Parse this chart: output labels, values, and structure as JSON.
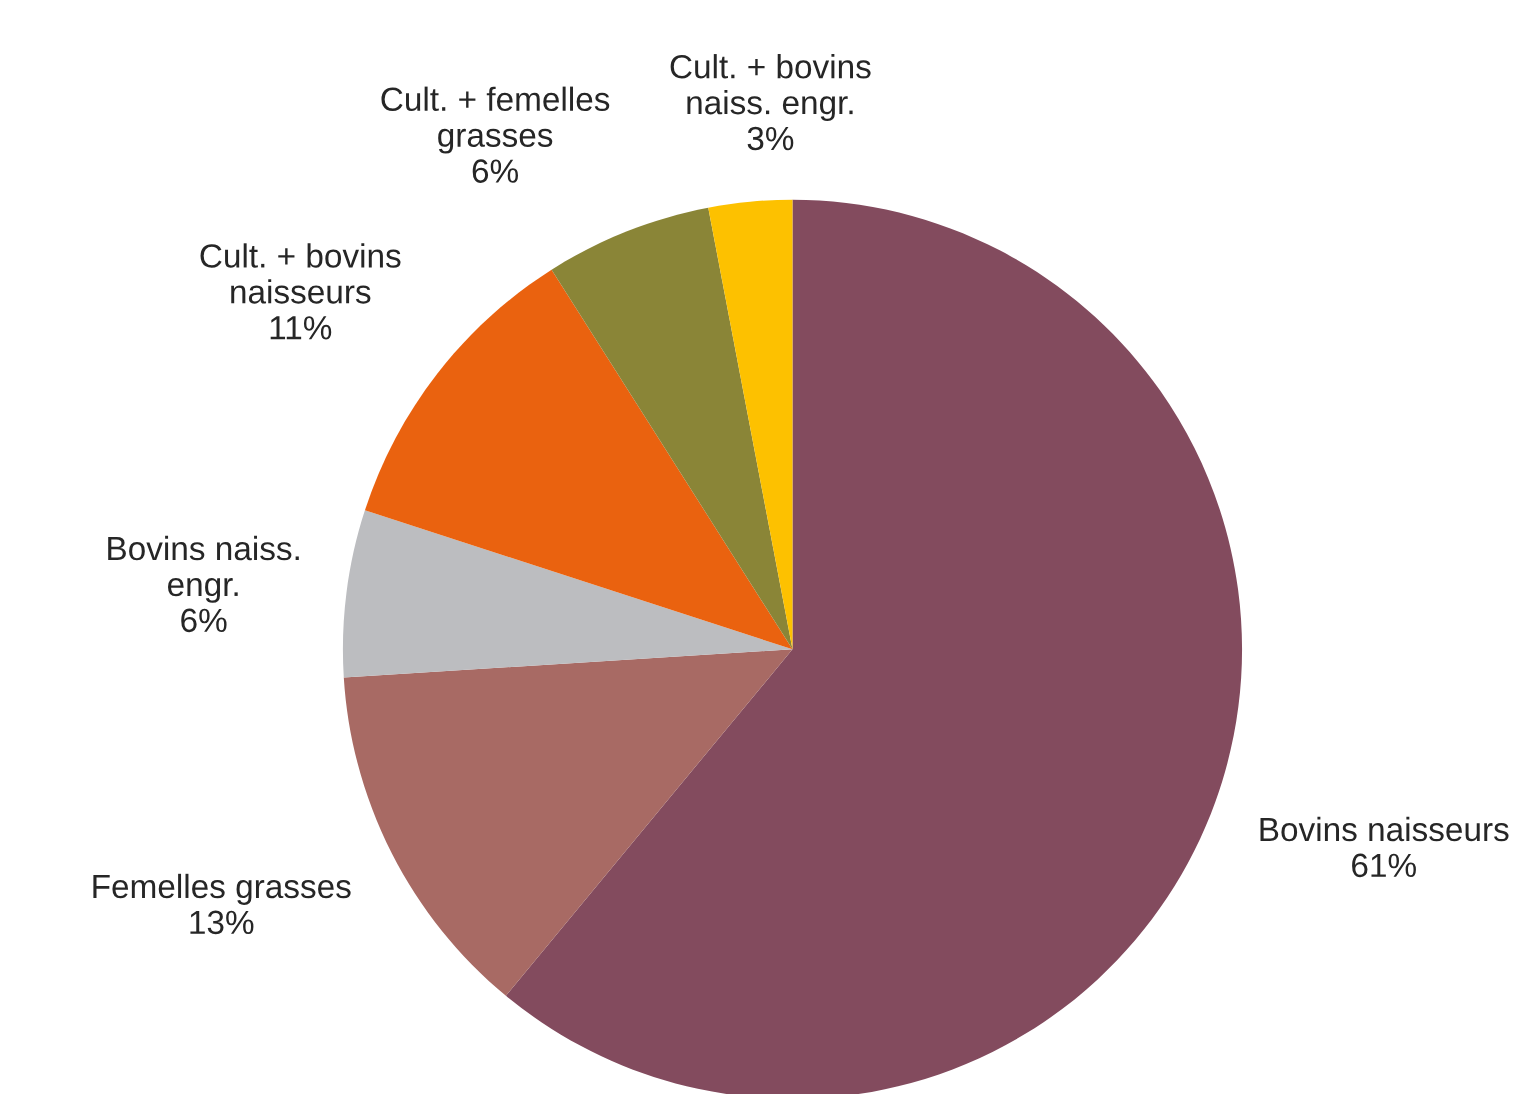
{
  "chart_data": {
    "type": "pie",
    "categories": [
      "Bovins naisseurs",
      "Femelles grasses",
      "Bovins naiss.\nengr.",
      "Cult. + bovins\nnaisseurs",
      "Cult. + femelles\ngrasses",
      "Cult. + bovins\nnaiss. engr."
    ],
    "values": [
      61,
      13,
      6,
      11,
      6,
      3
    ],
    "value_labels": [
      "61%",
      "13%",
      "6%",
      "11%",
      "6%",
      "3%"
    ],
    "colors": [
      "#834b5e",
      "#a86a64",
      "#bcbdc0",
      "#ea620f",
      "#8a8537",
      "#fdc100"
    ]
  }
}
